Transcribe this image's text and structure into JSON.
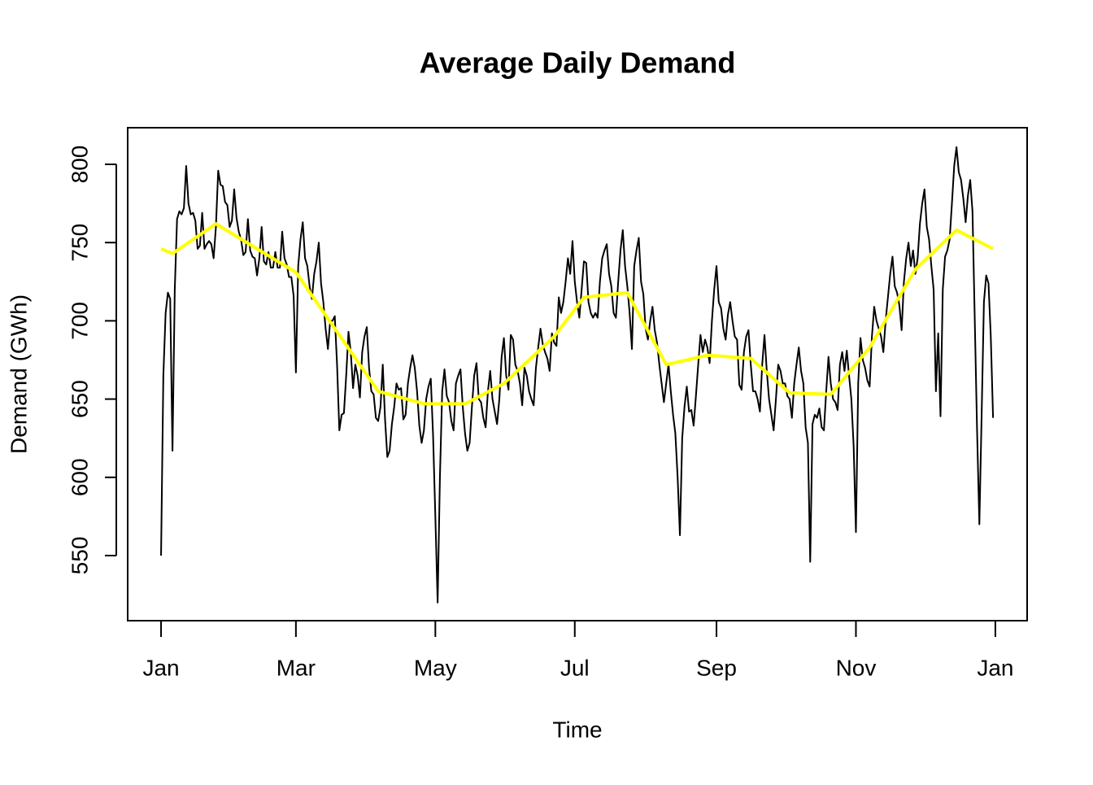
{
  "chart_data": {
    "type": "line",
    "title": "Average Daily Demand",
    "x_label": "Time",
    "y_label": "Demand (GWh)",
    "xlim": [
      -14.6,
      378.9
    ],
    "ylim": [
      508.4,
      823.4
    ],
    "xticks": [
      {
        "value": 0,
        "label": "Jan"
      },
      {
        "value": 59,
        "label": "Mar"
      },
      {
        "value": 120,
        "label": "May"
      },
      {
        "value": 181,
        "label": "Jul"
      },
      {
        "value": 243,
        "label": "Sep"
      },
      {
        "value": 304,
        "label": "Nov"
      },
      {
        "value": 365,
        "label": "Jan"
      }
    ],
    "yticks": [
      550,
      600,
      650,
      700,
      750,
      800
    ],
    "grid": false,
    "series": [
      {
        "color": "#000000",
        "width": 2,
        "x": [
          0,
          1,
          2,
          3,
          4,
          5,
          6,
          7,
          8,
          9,
          10,
          11,
          12,
          13,
          14,
          15,
          16,
          17,
          18,
          19,
          20,
          21,
          22,
          23,
          24,
          25,
          26,
          27,
          28,
          29,
          30,
          31,
          32,
          33,
          34,
          35,
          36,
          37,
          38,
          39,
          40,
          41,
          42,
          43,
          44,
          45,
          46,
          47,
          48,
          49,
          50,
          51,
          52,
          53,
          54,
          55,
          56,
          57,
          58,
          59,
          60,
          61,
          62,
          63,
          64,
          65,
          66,
          67,
          68,
          69,
          70,
          71,
          72,
          73,
          74,
          75,
          76,
          77,
          78,
          79,
          80,
          81,
          82,
          83,
          84,
          85,
          86,
          87,
          88,
          89,
          90,
          91,
          92,
          93,
          94,
          95,
          96,
          97,
          98,
          99,
          100,
          101,
          102,
          103,
          104,
          105,
          106,
          107,
          108,
          109,
          110,
          111,
          112,
          113,
          114,
          115,
          116,
          117,
          118,
          119,
          120,
          121,
          122,
          123,
          124,
          125,
          126,
          127,
          128,
          129,
          130,
          131,
          132,
          133,
          134,
          135,
          136,
          137,
          138,
          139,
          140,
          141,
          142,
          143,
          144,
          145,
          146,
          147,
          148,
          149,
          150,
          151,
          152,
          153,
          154,
          155,
          156,
          157,
          158,
          159,
          160,
          161,
          162,
          163,
          164,
          165,
          166,
          167,
          168,
          169,
          170,
          171,
          172,
          173,
          174,
          175,
          176,
          177,
          178,
          179,
          180,
          181,
          182,
          183,
          184,
          185,
          186,
          187,
          188,
          189,
          190,
          191,
          192,
          193,
          194,
          195,
          196,
          197,
          198,
          199,
          200,
          201,
          202,
          203,
          204,
          205,
          206,
          207,
          208,
          209,
          210,
          211,
          212,
          213,
          214,
          215,
          216,
          217,
          218,
          219,
          220,
          221,
          222,
          223,
          224,
          225,
          226,
          227,
          228,
          229,
          230,
          231,
          232,
          233,
          234,
          235,
          236,
          237,
          238,
          239,
          240,
          241,
          242,
          243,
          244,
          245,
          246,
          247,
          248,
          249,
          250,
          251,
          252,
          253,
          254,
          255,
          256,
          257,
          258,
          259,
          260,
          261,
          262,
          263,
          264,
          265,
          266,
          267,
          268,
          269,
          270,
          271,
          272,
          273,
          274,
          275,
          276,
          277,
          278,
          279,
          280,
          281,
          282,
          283,
          284,
          285,
          286,
          287,
          288,
          289,
          290,
          291,
          292,
          293,
          294,
          295,
          296,
          297,
          298,
          299,
          300,
          301,
          302,
          303,
          304,
          305,
          306,
          307,
          308,
          309,
          310,
          311,
          312,
          313,
          314,
          315,
          316,
          317,
          318,
          319,
          320,
          321,
          322,
          323,
          324,
          325,
          326,
          327,
          328,
          329,
          330,
          331,
          332,
          333,
          334,
          335,
          336,
          337,
          338,
          339,
          340,
          341,
          342,
          343,
          344,
          345,
          346,
          347,
          348,
          349,
          350,
          351,
          352,
          353,
          354,
          355,
          356,
          357,
          358,
          359,
          360,
          361,
          362,
          363,
          364
        ],
        "values": [
          550,
          665,
          705,
          718,
          714,
          617,
          720,
          765,
          770,
          768,
          772,
          799,
          775,
          768,
          769,
          764,
          746,
          748,
          769,
          746,
          749,
          751,
          749,
          740,
          760,
          796,
          787,
          786,
          776,
          774,
          760,
          764,
          784,
          766,
          757,
          752,
          742,
          744,
          765,
          745,
          741,
          740,
          729,
          740,
          760,
          738,
          736,
          744,
          734,
          734,
          744,
          734,
          734,
          757,
          740,
          736,
          728,
          728,
          716,
          667,
          735,
          752,
          763,
          740,
          735,
          722,
          714,
          730,
          738,
          750,
          724,
          712,
          695,
          682,
          700,
          700,
          703,
          672,
          630,
          640,
          641,
          665,
          693,
          680,
          657,
          672,
          665,
          651,
          680,
          690,
          696,
          670,
          655,
          653,
          638,
          636,
          645,
          672,
          637,
          613,
          617,
          634,
          645,
          660,
          656,
          657,
          637,
          640,
          660,
          670,
          678,
          670,
          655,
          633,
          622,
          630,
          650,
          658,
          663,
          627,
          575,
          520,
          600,
          655,
          669,
          652,
          648,
          636,
          630,
          660,
          665,
          669,
          645,
          628,
          617,
          622,
          645,
          665,
          673,
          650,
          648,
          638,
          632,
          655,
          668,
          650,
          642,
          634,
          650,
          677,
          689,
          665,
          656,
          691,
          688,
          672,
          668,
          660,
          646,
          670,
          665,
          655,
          650,
          646,
          670,
          683,
          695,
          685,
          680,
          676,
          668,
          692,
          686,
          684,
          715,
          705,
          712,
          725,
          740,
          730,
          751,
          725,
          712,
          702,
          720,
          738,
          737,
          712,
          705,
          702,
          705,
          702,
          725,
          740,
          745,
          749,
          730,
          722,
          705,
          702,
          725,
          745,
          758,
          735,
          722,
          705,
          682,
          735,
          745,
          753,
          725,
          717,
          695,
          688,
          700,
          709,
          694,
          686,
          672,
          660,
          648,
          660,
          672,
          655,
          640,
          628,
          600,
          563,
          625,
          645,
          658,
          642,
          643,
          633,
          652,
          672,
          691,
          680,
          688,
          683,
          673,
          700,
          720,
          735,
          712,
          708,
          695,
          688,
          704,
          712,
          700,
          690,
          688,
          659,
          656,
          680,
          690,
          694,
          672,
          655,
          655,
          650,
          642,
          672,
          691,
          668,
          650,
          640,
          630,
          650,
          672,
          668,
          660,
          660,
          652,
          650,
          638,
          660,
          672,
          683,
          668,
          660,
          632,
          622,
          546,
          634,
          640,
          638,
          644,
          632,
          630,
          655,
          677,
          660,
          650,
          648,
          643,
          672,
          680,
          668,
          681,
          665,
          650,
          620,
          565,
          660,
          689,
          675,
          670,
          662,
          658,
          690,
          709,
          700,
          695,
          690,
          680,
          700,
          715,
          730,
          741,
          722,
          718,
          710,
          694,
          725,
          740,
          750,
          735,
          745,
          730,
          740,
          762,
          775,
          784,
          760,
          752,
          735,
          720,
          655,
          692,
          639,
          720,
          741,
          745,
          752,
          775,
          799,
          811,
          795,
          790,
          778,
          763,
          780,
          790,
          770,
          700,
          630,
          570,
          640,
          712,
          729,
          724,
          690,
          638
        ]
      },
      {
        "color": "#ffff00",
        "width": 4,
        "x": [
          0,
          5,
          24,
          59,
          95,
          115,
          133,
          150,
          172,
          185,
          204,
          221,
          239,
          258,
          275,
          293,
          310,
          330,
          348,
          364
        ],
        "values": [
          746,
          743,
          762,
          731,
          655,
          647,
          647,
          660,
          690,
          715,
          718,
          672,
          678,
          676,
          654,
          653,
          683,
          733,
          758,
          746
        ]
      }
    ]
  }
}
